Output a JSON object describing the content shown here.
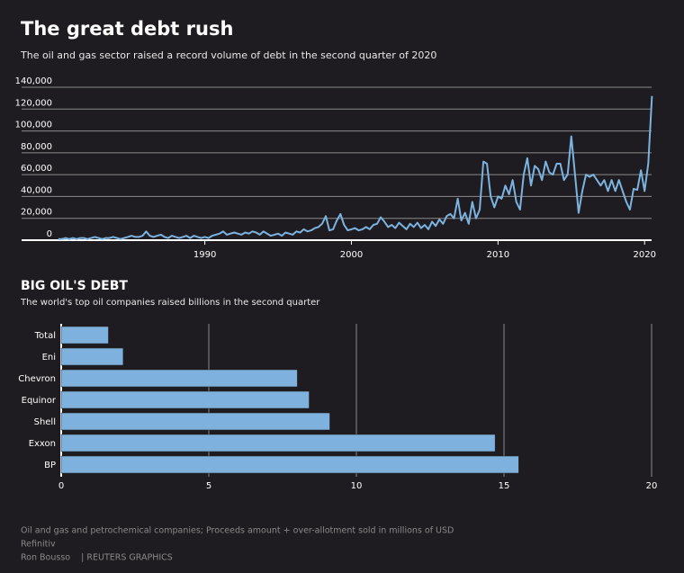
{
  "chart_data": [
    {
      "type": "line",
      "title": "The great debt rush",
      "subtitle": "The oil and gas sector raised a record volume of debt in the second quarter of 2020",
      "color": "#7cb3e0",
      "grid": true,
      "x": [
        1980,
        1980.25,
        1980.5,
        1980.75,
        1981,
        1981.25,
        1981.5,
        1981.75,
        1982,
        1982.25,
        1982.5,
        1982.75,
        1983,
        1983.25,
        1983.5,
        1983.75,
        1984,
        1984.25,
        1984.5,
        1984.75,
        1985,
        1985.25,
        1985.5,
        1985.75,
        1986,
        1986.25,
        1986.5,
        1986.75,
        1987,
        1987.25,
        1987.5,
        1987.75,
        1988,
        1988.25,
        1988.5,
        1988.75,
        1989,
        1989.25,
        1989.5,
        1989.75,
        1990,
        1990.25,
        1990.5,
        1990.75,
        1991,
        1991.25,
        1991.5,
        1991.75,
        1992,
        1992.25,
        1992.5,
        1992.75,
        1993,
        1993.25,
        1993.5,
        1993.75,
        1994,
        1994.25,
        1994.5,
        1994.75,
        1995,
        1995.25,
        1995.5,
        1995.75,
        1996,
        1996.25,
        1996.5,
        1996.75,
        1997,
        1997.25,
        1997.5,
        1997.75,
        1998,
        1998.25,
        1998.5,
        1998.75,
        1999,
        1999.25,
        1999.5,
        1999.75,
        2000,
        2000.25,
        2000.5,
        2000.75,
        2001,
        2001.25,
        2001.5,
        2001.75,
        2002,
        2002.25,
        2002.5,
        2002.75,
        2003,
        2003.25,
        2003.5,
        2003.75,
        2004,
        2004.25,
        2004.5,
        2004.75,
        2005,
        2005.25,
        2005.5,
        2005.75,
        2006,
        2006.25,
        2006.5,
        2006.75,
        2007,
        2007.25,
        2007.5,
        2007.75,
        2008,
        2008.25,
        2008.5,
        2008.75,
        2009,
        2009.25,
        2009.5,
        2009.75,
        2010,
        2010.25,
        2010.5,
        2010.75,
        2011,
        2011.25,
        2011.5,
        2011.75,
        2012,
        2012.25,
        2012.5,
        2012.75,
        2013,
        2013.25,
        2013.5,
        2013.75,
        2014,
        2014.25,
        2014.5,
        2014.75,
        2015,
        2015.25,
        2015.5,
        2015.75,
        2016,
        2016.25,
        2016.5,
        2016.75,
        2017,
        2017.25,
        2017.5,
        2017.75,
        2018,
        2018.25,
        2018.5,
        2018.75,
        2019,
        2019.25,
        2019.5,
        2019.75,
        2020,
        2020.25,
        2020.5
      ],
      "values": [
        1000,
        1000,
        2000,
        1000,
        2000,
        1000,
        2000,
        2000,
        1000,
        2000,
        3000,
        2000,
        1000,
        2000,
        2000,
        3000,
        2000,
        1000,
        2000,
        3000,
        4000,
        3000,
        3000,
        4000,
        8000,
        4000,
        3000,
        4000,
        5000,
        3000,
        2000,
        4000,
        3000,
        2000,
        3000,
        4000,
        2000,
        4000,
        3000,
        2000,
        3000,
        2000,
        4000,
        5000,
        6000,
        8000,
        5000,
        6000,
        7000,
        6000,
        5000,
        7000,
        6000,
        8000,
        7000,
        5000,
        8000,
        6000,
        4000,
        5000,
        6000,
        4000,
        7000,
        6000,
        5000,
        8000,
        7000,
        10000,
        8000,
        9000,
        11000,
        12000,
        15000,
        22000,
        9000,
        10000,
        18000,
        24000,
        14000,
        9000,
        10000,
        11000,
        9000,
        10000,
        12000,
        10000,
        14000,
        15000,
        21000,
        17000,
        12000,
        14000,
        11000,
        16000,
        13000,
        10000,
        15000,
        12000,
        16000,
        11000,
        14000,
        10000,
        17000,
        13000,
        19000,
        15000,
        22000,
        24000,
        20000,
        38000,
        18000,
        25000,
        15000,
        35000,
        20000,
        28000,
        72000,
        70000,
        40000,
        30000,
        40000,
        38000,
        50000,
        42000,
        55000,
        35000,
        28000,
        60000,
        75000,
        50000,
        68000,
        65000,
        55000,
        72000,
        62000,
        60000,
        70000,
        70000,
        55000,
        60000,
        95000,
        60000,
        25000,
        45000,
        60000,
        58000,
        60000,
        55000,
        50000,
        55000,
        45000,
        55000,
        45000,
        55000,
        45000,
        35000,
        28000,
        47000,
        46000,
        64000,
        45000,
        70000,
        132000
      ],
      "xlim": [
        1977.5,
        2020.6
      ],
      "xticks": [
        1990,
        2000,
        2010,
        2020
      ],
      "ylim": [
        0,
        140000
      ],
      "yticks": [
        0,
        {
          "value": 20000,
          "label": "20,000"
        },
        {
          "value": 40000,
          "label": "40,000"
        },
        {
          "value": 60000,
          "label": "60,000"
        },
        {
          "value": 80000,
          "label": "80,000"
        },
        {
          "value": 100000,
          "label": "100,000"
        },
        {
          "value": 120000,
          "label": "120,000"
        },
        {
          "value": 140000,
          "label": "140,000"
        }
      ]
    },
    {
      "type": "barh",
      "title": "BIG OIL'S DEBT",
      "subtitle": "The world's top oil companies raised billions in the second quarter",
      "color": "#7fb1de",
      "grid": true,
      "categories": [
        "Total",
        "Eni",
        "Chevron",
        "Equinor",
        "Shell",
        "Exxon",
        "BP"
      ],
      "values": [
        1.6,
        2.1,
        8.0,
        8.4,
        9.1,
        14.7,
        15.5
      ],
      "xlim": [
        0,
        20
      ],
      "xticks": [
        0,
        5,
        10,
        15,
        20
      ]
    }
  ],
  "footer": [
    "Oil and gas and petrochemical companies; Proceeds amount + over-allotment sold in millions of USD",
    "Refinitiv",
    "Ron Bousso    | REUTERS GRAPHICS"
  ]
}
